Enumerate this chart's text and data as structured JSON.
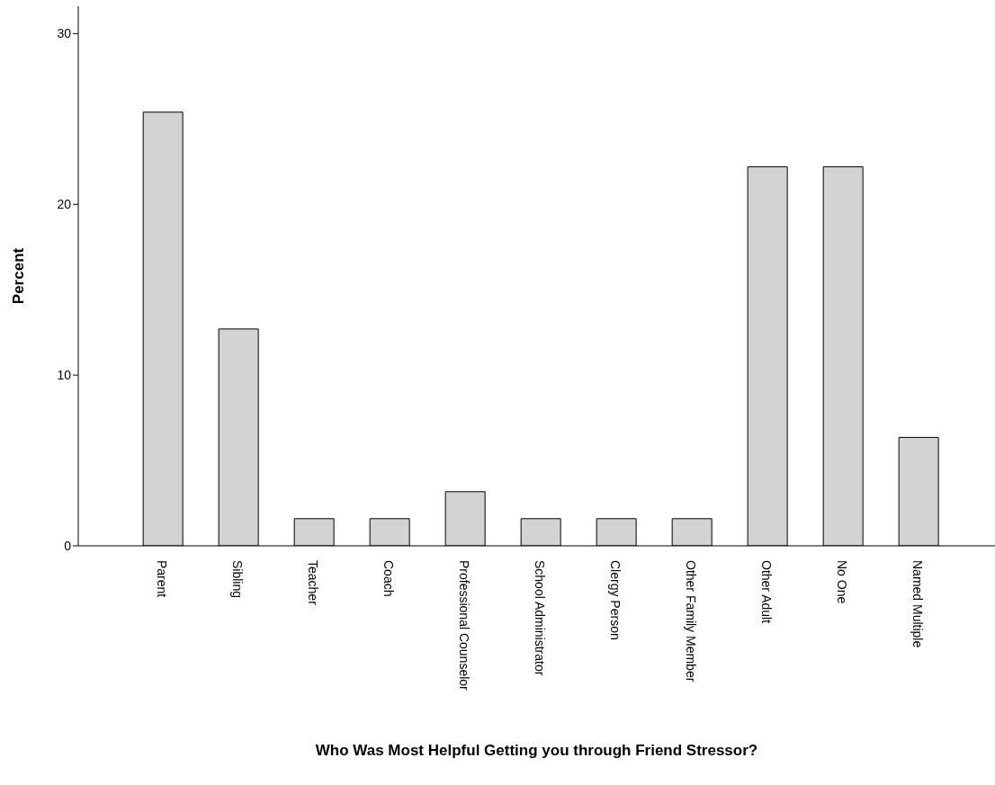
{
  "chart_data": {
    "type": "bar",
    "xlabel": "Who Was Most Helpful Getting you through Friend Stressor?",
    "ylabel": "Percent",
    "categories": [
      "Parent",
      "Sibling",
      "Teacher",
      "Coach",
      "Professional Counselor",
      "School Administrator",
      "Clergy Person",
      "Other Family Member",
      "Other Adult",
      "No One",
      "Named Multiple"
    ],
    "values": [
      25.4,
      12.7,
      1.59,
      1.59,
      3.17,
      1.59,
      1.59,
      1.59,
      22.2,
      22.2,
      6.35
    ],
    "color": "#d3d3d3",
    "ylim": [
      0,
      31.6
    ],
    "yticks": [
      0,
      10,
      20,
      30
    ],
    "grid": false
  }
}
